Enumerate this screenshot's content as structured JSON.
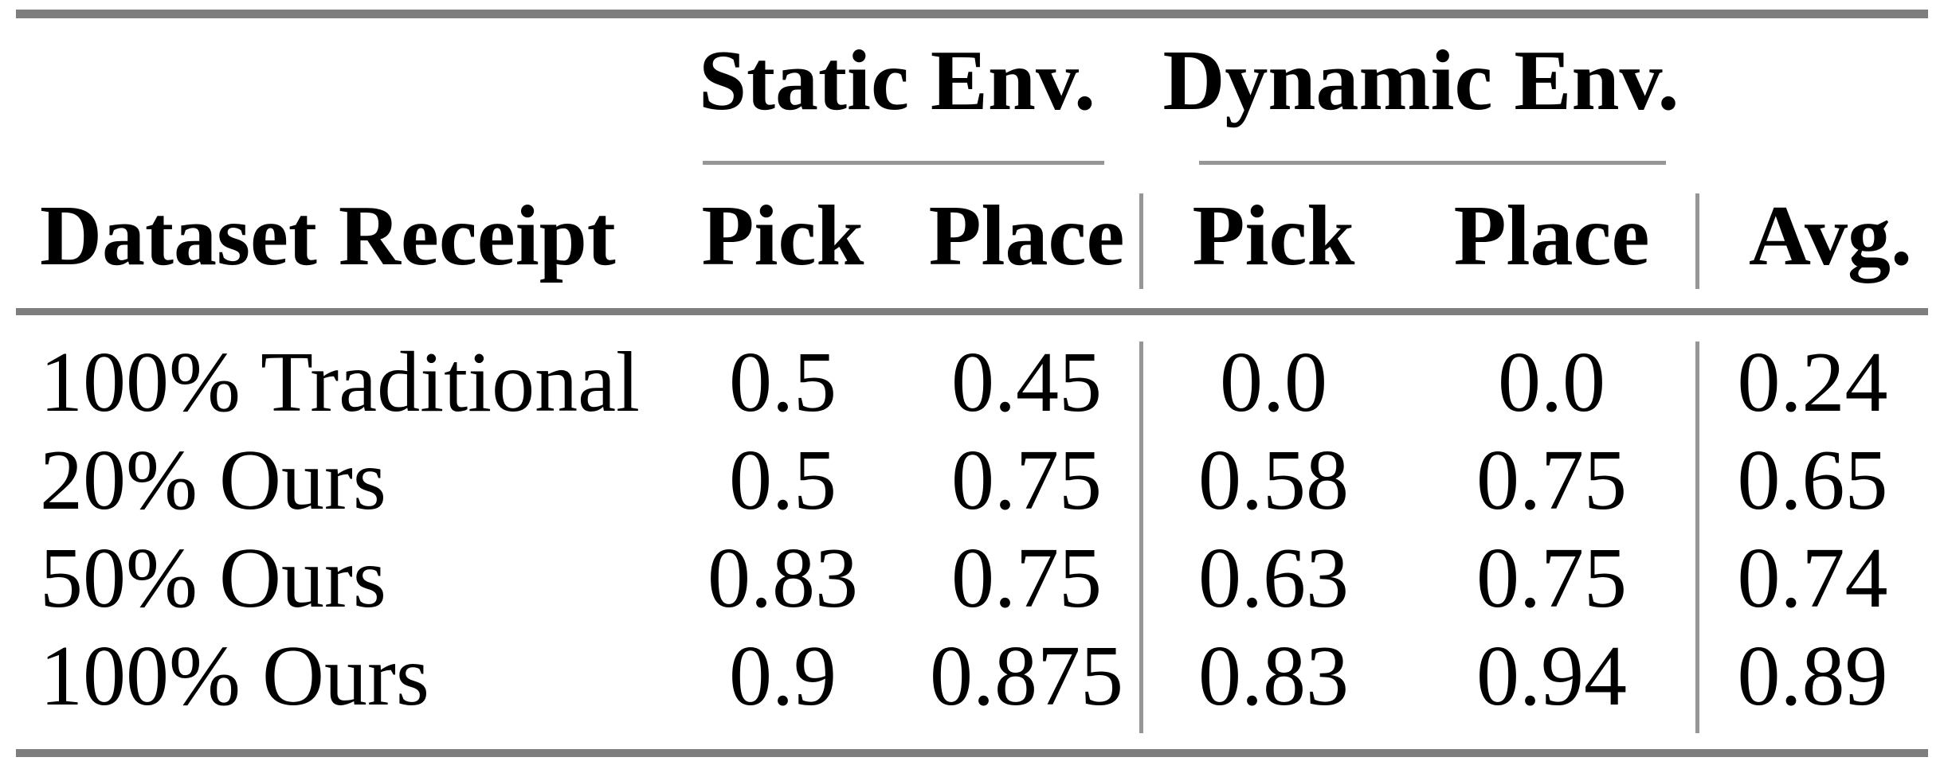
{
  "figure": {
    "type": "paper-results-table",
    "column_groups": [
      {
        "label": "Static Env."
      },
      {
        "label": "Dynamic Env."
      }
    ],
    "headers": [
      "Dataset Receipt",
      "Pick",
      "Place",
      "Pick",
      "Place",
      "Avg."
    ],
    "rows": [
      [
        "100% Traditional",
        "0.5",
        "0.45",
        "0.0",
        "0.0",
        "0.24"
      ],
      [
        "20% Ours",
        "0.5",
        "0.75",
        "0.58",
        "0.75",
        "0.65"
      ],
      [
        "50% Ours",
        "0.83",
        "0.75",
        "0.63",
        "0.75",
        "0.74"
      ],
      [
        "100% Ours",
        "0.9",
        "0.875",
        "0.83",
        "0.94",
        "0.89"
      ]
    ],
    "colors": {
      "heavy_rule": "#7e7e7e",
      "light_rule": "#969696",
      "text": "#000000",
      "background": "#ffffff"
    }
  },
  "chart_data": {
    "type": "table",
    "title": "",
    "column_groups": [
      "",
      "Static Env.",
      "Static Env.",
      "Dynamic Env.",
      "Dynamic Env.",
      ""
    ],
    "columns": [
      "Dataset Receipt",
      "Static Env. Pick",
      "Static Env. Place",
      "Dynamic Env. Pick",
      "Dynamic Env. Place",
      "Avg."
    ],
    "rows": [
      {
        "dataset_receipt": "100% Traditional",
        "static_pick": 0.5,
        "static_place": 0.45,
        "dynamic_pick": 0.0,
        "dynamic_place": 0.0,
        "avg": 0.24
      },
      {
        "dataset_receipt": "20% Ours",
        "static_pick": 0.5,
        "static_place": 0.75,
        "dynamic_pick": 0.58,
        "dynamic_place": 0.75,
        "avg": 0.65
      },
      {
        "dataset_receipt": "50% Ours",
        "static_pick": 0.83,
        "static_place": 0.75,
        "dynamic_pick": 0.63,
        "dynamic_place": 0.75,
        "avg": 0.74
      },
      {
        "dataset_receipt": "100% Ours",
        "static_pick": 0.9,
        "static_place": 0.875,
        "dynamic_pick": 0.83,
        "dynamic_place": 0.94,
        "avg": 0.89
      }
    ]
  }
}
